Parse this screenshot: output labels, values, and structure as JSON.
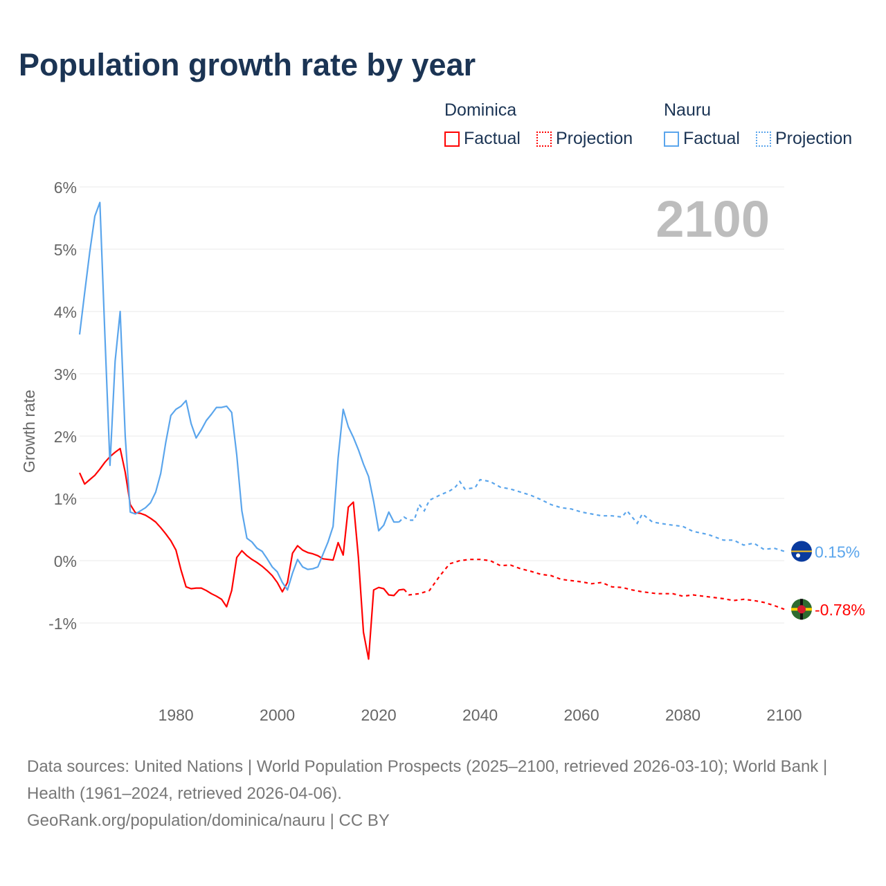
{
  "title": "Population growth rate by year",
  "legend": {
    "groups": [
      {
        "name": "Dominica",
        "factual": "Factual",
        "projection": "Projection",
        "color": "#ff0000"
      },
      {
        "name": "Nauru",
        "factual": "Factual",
        "projection": "Projection",
        "color": "#5aa5ec"
      }
    ]
  },
  "footer": {
    "sources": "Data sources: United Nations | World Population Prospects (2025–2100, retrieved 2026-03-10); World Bank | Health (1961–2024, retrieved 2026-04-06).",
    "credit": "GeoRank.org/population/dominica/nauru | CC BY"
  },
  "chart_data": {
    "type": "line",
    "title": "Population growth rate by year",
    "ylabel": "Growth rate",
    "xlabel": "",
    "year_watermark": "2100",
    "xlim": [
      1961,
      2100
    ],
    "ylim": [
      -2,
      6
    ],
    "x_ticks": [
      1980,
      2000,
      2020,
      2040,
      2060,
      2080,
      2100
    ],
    "y_ticks": [
      {
        "v": 6,
        "label": "6%"
      },
      {
        "v": 5,
        "label": "5%"
      },
      {
        "v": 4,
        "label": "4%"
      },
      {
        "v": 3,
        "label": "3%"
      },
      {
        "v": 2,
        "label": "2%"
      },
      {
        "v": 1,
        "label": "1%"
      },
      {
        "v": 0,
        "label": "0%"
      },
      {
        "v": -1,
        "label": "-1%"
      }
    ],
    "grid": true,
    "series": [
      {
        "name": "Dominica",
        "color": "#ff0000",
        "end_label": "-0.78%",
        "factual_start": 1961,
        "factual": [
          1.41,
          1.23,
          1.3,
          1.37,
          1.47,
          1.58,
          1.67,
          1.74,
          1.8,
          1.42,
          0.9,
          0.77,
          0.76,
          0.73,
          0.68,
          0.62,
          0.53,
          0.43,
          0.32,
          0.17,
          -0.15,
          -0.42,
          -0.45,
          -0.44,
          -0.44,
          -0.48,
          -0.53,
          -0.57,
          -0.62,
          -0.74,
          -0.48,
          0.05,
          0.16,
          0.08,
          0.02,
          -0.03,
          -0.09,
          -0.16,
          -0.24,
          -0.35,
          -0.5,
          -0.35,
          0.12,
          0.24,
          0.17,
          0.13,
          0.11,
          0.08,
          0.03,
          0.02,
          0.01,
          0.29,
          0.09,
          0.86,
          0.94,
          0.05,
          -1.15,
          -1.58,
          -0.47,
          -0.43,
          -0.45,
          -0.55,
          -0.56,
          -0.47,
          -0.46
        ],
        "projection": [
          [
            2025,
            -0.46
          ],
          [
            2026,
            -0.55
          ],
          [
            2028,
            -0.53
          ],
          [
            2030,
            -0.48
          ],
          [
            2032,
            -0.25
          ],
          [
            2034,
            -0.05
          ],
          [
            2036,
            0.0
          ],
          [
            2038,
            0.02
          ],
          [
            2040,
            0.02
          ],
          [
            2042,
            0.0
          ],
          [
            2044,
            -0.08
          ],
          [
            2046,
            -0.07
          ],
          [
            2048,
            -0.13
          ],
          [
            2050,
            -0.17
          ],
          [
            2052,
            -0.22
          ],
          [
            2054,
            -0.24
          ],
          [
            2056,
            -0.3
          ],
          [
            2058,
            -0.32
          ],
          [
            2060,
            -0.34
          ],
          [
            2062,
            -0.37
          ],
          [
            2064,
            -0.35
          ],
          [
            2066,
            -0.42
          ],
          [
            2068,
            -0.43
          ],
          [
            2070,
            -0.47
          ],
          [
            2072,
            -0.5
          ],
          [
            2075,
            -0.53
          ],
          [
            2078,
            -0.53
          ],
          [
            2080,
            -0.57
          ],
          [
            2082,
            -0.55
          ],
          [
            2085,
            -0.58
          ],
          [
            2088,
            -0.61
          ],
          [
            2090,
            -0.64
          ],
          [
            2092,
            -0.62
          ],
          [
            2094,
            -0.64
          ],
          [
            2096,
            -0.67
          ],
          [
            2098,
            -0.72
          ],
          [
            2100,
            -0.78
          ]
        ]
      },
      {
        "name": "Nauru",
        "color": "#5aa5ec",
        "end_label": "0.15%",
        "factual_start": 1961,
        "factual": [
          3.63,
          4.3,
          4.95,
          5.53,
          5.75,
          3.6,
          1.53,
          3.2,
          4.0,
          2.0,
          0.78,
          0.75,
          0.8,
          0.85,
          0.93,
          1.1,
          1.4,
          1.9,
          2.33,
          2.43,
          2.48,
          2.57,
          2.2,
          1.97,
          2.1,
          2.25,
          2.35,
          2.46,
          2.46,
          2.48,
          2.38,
          1.7,
          0.8,
          0.36,
          0.3,
          0.2,
          0.15,
          0.03,
          -0.1,
          -0.18,
          -0.35,
          -0.47,
          -0.2,
          0.02,
          -0.1,
          -0.14,
          -0.13,
          -0.1,
          0.1,
          0.3,
          0.55,
          1.65,
          2.43,
          2.15,
          1.98,
          1.78,
          1.55,
          1.35,
          0.95,
          0.48,
          0.57,
          0.78,
          0.62,
          0.62
        ],
        "projection": [
          [
            2024,
            0.62
          ],
          [
            2025,
            0.7
          ],
          [
            2026,
            0.65
          ],
          [
            2027,
            0.65
          ],
          [
            2028,
            0.9
          ],
          [
            2029,
            0.8
          ],
          [
            2030,
            0.97
          ],
          [
            2032,
            1.05
          ],
          [
            2034,
            1.12
          ],
          [
            2035,
            1.17
          ],
          [
            2036,
            1.27
          ],
          [
            2037,
            1.15
          ],
          [
            2039,
            1.17
          ],
          [
            2040,
            1.3
          ],
          [
            2042,
            1.27
          ],
          [
            2044,
            1.18
          ],
          [
            2046,
            1.15
          ],
          [
            2048,
            1.1
          ],
          [
            2050,
            1.05
          ],
          [
            2052,
            0.98
          ],
          [
            2054,
            0.9
          ],
          [
            2056,
            0.85
          ],
          [
            2058,
            0.83
          ],
          [
            2060,
            0.78
          ],
          [
            2062,
            0.75
          ],
          [
            2064,
            0.72
          ],
          [
            2066,
            0.72
          ],
          [
            2068,
            0.7
          ],
          [
            2069,
            0.8
          ],
          [
            2071,
            0.6
          ],
          [
            2072,
            0.75
          ],
          [
            2074,
            0.62
          ],
          [
            2077,
            0.58
          ],
          [
            2080,
            0.55
          ],
          [
            2082,
            0.47
          ],
          [
            2085,
            0.42
          ],
          [
            2088,
            0.33
          ],
          [
            2090,
            0.33
          ],
          [
            2092,
            0.25
          ],
          [
            2094,
            0.28
          ],
          [
            2096,
            0.18
          ],
          [
            2098,
            0.2
          ],
          [
            2100,
            0.15
          ]
        ]
      }
    ]
  }
}
